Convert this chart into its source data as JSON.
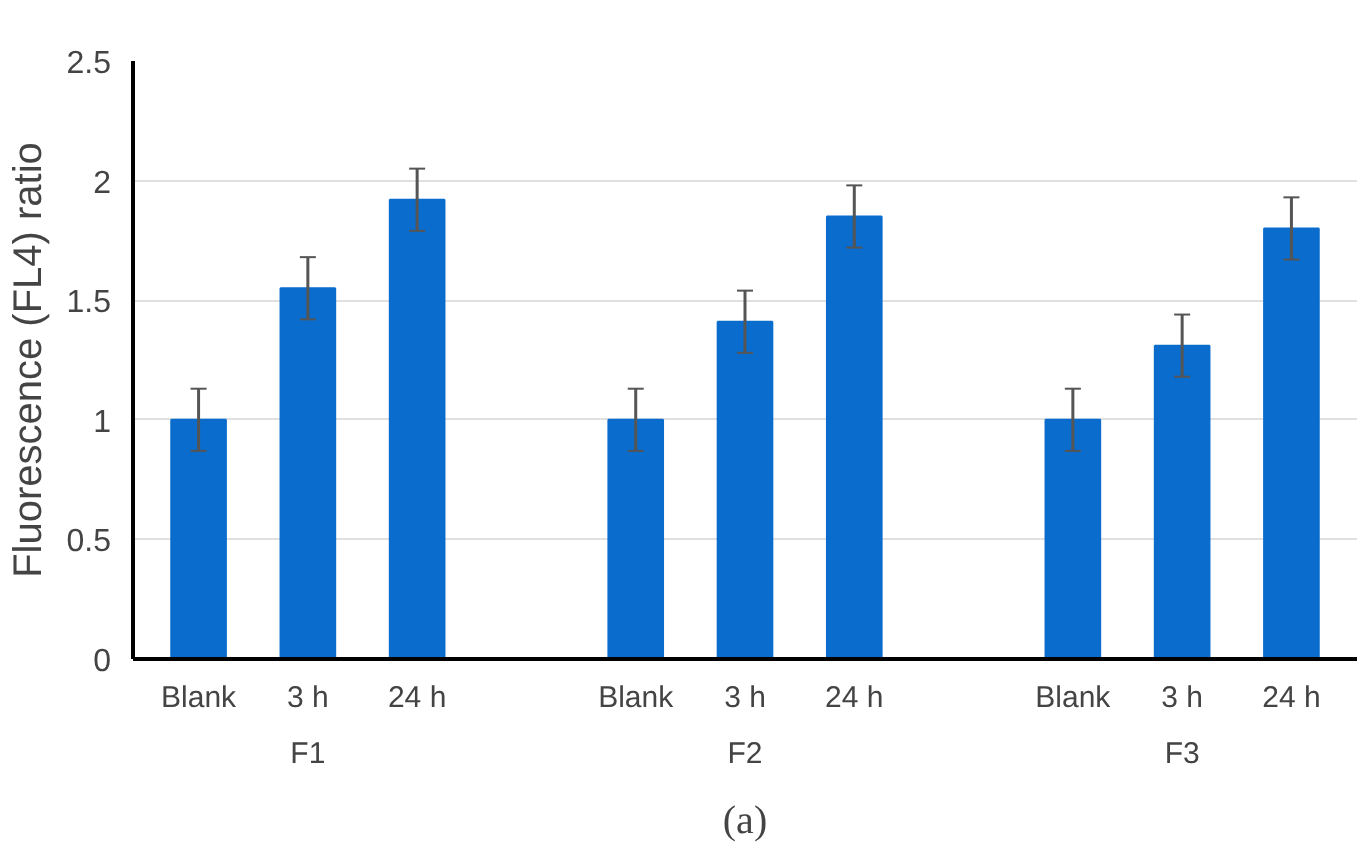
{
  "chart_data": {
    "type": "bar",
    "ylabel": "Fluorescence (FL4) ratio",
    "categories": [
      "Blank",
      "3 h",
      "24 h",
      null,
      "Blank",
      "3 h",
      "24 h",
      null,
      "Blank",
      "3 h",
      "24 h"
    ],
    "values": [
      1.0,
      1.55,
      1.92,
      null,
      1.0,
      1.41,
      1.85,
      null,
      1.0,
      1.31,
      1.8
    ],
    "errors": [
      0.13,
      0.13,
      0.13,
      null,
      0.13,
      0.13,
      0.13,
      null,
      0.13,
      0.13,
      0.13
    ],
    "color": "#0a6ccc",
    "ylim": [
      0,
      2.5
    ],
    "yticks": [
      0,
      0.5,
      1,
      1.5,
      2,
      2.5
    ],
    "grid": "y",
    "annotations": [
      "F1",
      "F2",
      "F3",
      "(a)"
    ]
  }
}
